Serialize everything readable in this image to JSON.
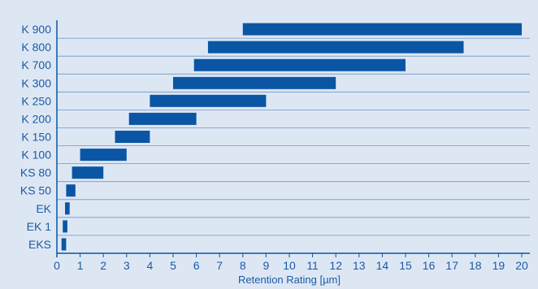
{
  "chart_data": {
    "type": "bar",
    "orientation": "horizontal",
    "bar_style": "floating-range",
    "title": "",
    "xlabel": "Retention Rating [µm]",
    "ylabel": "",
    "xlim": [
      0,
      20.5
    ],
    "x_ticks": [
      0,
      1,
      2,
      3,
      4,
      5,
      6,
      7,
      8,
      9,
      10,
      11,
      12,
      13,
      14,
      15,
      16,
      17,
      18,
      19,
      20
    ],
    "grid": "horizontal",
    "legend": "none",
    "categories": [
      "K 900",
      "K 800",
      "K 700",
      "K 300",
      "K 250",
      "K 200",
      "K 150",
      "K 100",
      "KS 80",
      "KS 50",
      "EK",
      "EK 1",
      "EKS"
    ],
    "ranges": [
      [
        8,
        20
      ],
      [
        6.5,
        17.5
      ],
      [
        5.9,
        15
      ],
      [
        5,
        12
      ],
      [
        4,
        9
      ],
      [
        3.1,
        6
      ],
      [
        2.5,
        4
      ],
      [
        1,
        3
      ],
      [
        0.65,
        2
      ],
      [
        0.4,
        0.8
      ],
      [
        0.35,
        0.55
      ],
      [
        0.25,
        0.45
      ],
      [
        0.2,
        0.4
      ]
    ],
    "colors": {
      "background": "#dde7f4",
      "bar": "#0a56a4",
      "grid": "#6f95c4",
      "text": "#1b5aa6",
      "axis": "#0a56a4"
    }
  }
}
